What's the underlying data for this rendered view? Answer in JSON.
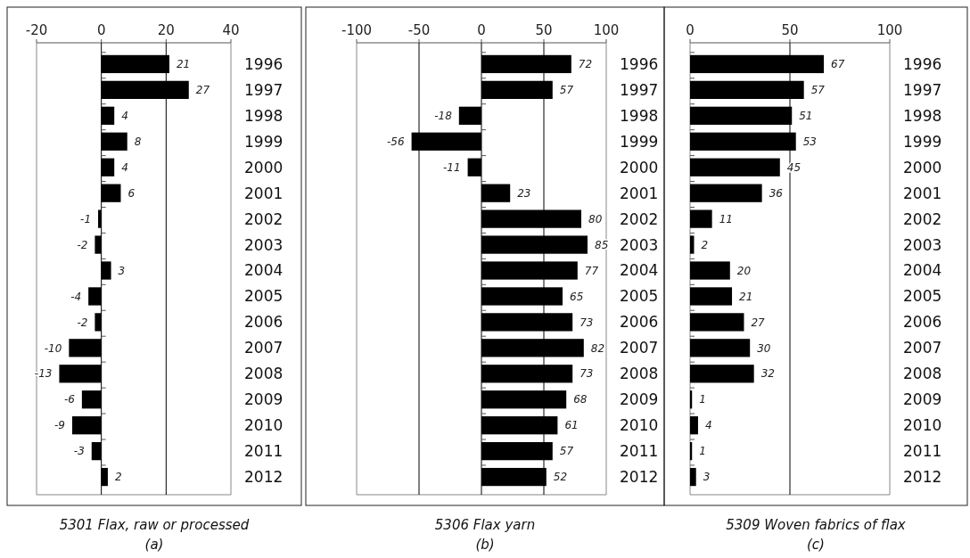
{
  "chart_data": [
    {
      "type": "bar",
      "orientation": "horizontal",
      "title": "5301 Flax, raw or processed",
      "subtitle": "(a)",
      "categories": [
        "1996",
        "1997",
        "1998",
        "1999",
        "2000",
        "2001",
        "2002",
        "2003",
        "2004",
        "2005",
        "2006",
        "2007",
        "2008",
        "2009",
        "2010",
        "2011",
        "2012"
      ],
      "values": [
        21,
        27,
        4,
        8,
        4,
        6,
        -1,
        -2,
        3,
        -4,
        -2,
        -10,
        -13,
        -6,
        -9,
        -3,
        2
      ],
      "color": "#000000",
      "xlim": [
        -20,
        40
      ],
      "xticks": [
        -20,
        0,
        20,
        40
      ],
      "grid": "x",
      "data_labels": true
    },
    {
      "type": "bar",
      "orientation": "horizontal",
      "title": "5306 Flax yarn",
      "subtitle": "(b)",
      "categories": [
        "1996",
        "1997",
        "1998",
        "1999",
        "2000",
        "2001",
        "2002",
        "2003",
        "2004",
        "2005",
        "2006",
        "2007",
        "2008",
        "2009",
        "2010",
        "2011",
        "2012"
      ],
      "values": [
        72,
        57,
        -18,
        -56,
        -11,
        23,
        80,
        85,
        77,
        65,
        73,
        82,
        73,
        68,
        61,
        57,
        52
      ],
      "color": "#000000",
      "xlim": [
        -100,
        100
      ],
      "xticks": [
        -100,
        -50,
        0,
        50,
        100
      ],
      "grid": "x",
      "data_labels": true
    },
    {
      "type": "bar",
      "orientation": "horizontal",
      "title": "5309 Woven fabrics of flax",
      "subtitle": "(c)",
      "categories": [
        "1996",
        "1997",
        "1998",
        "1999",
        "2000",
        "2001",
        "2002",
        "2003",
        "2004",
        "2005",
        "2006",
        "2007",
        "2008",
        "2009",
        "2010",
        "2011",
        "2012"
      ],
      "values": [
        67,
        57,
        51,
        53,
        45,
        36,
        11,
        2,
        20,
        21,
        27,
        30,
        32,
        1,
        4,
        1,
        3
      ],
      "color": "#000000",
      "xlim": [
        0,
        100
      ],
      "xticks": [
        0,
        50,
        100
      ],
      "grid": "x",
      "data_labels": true
    }
  ]
}
